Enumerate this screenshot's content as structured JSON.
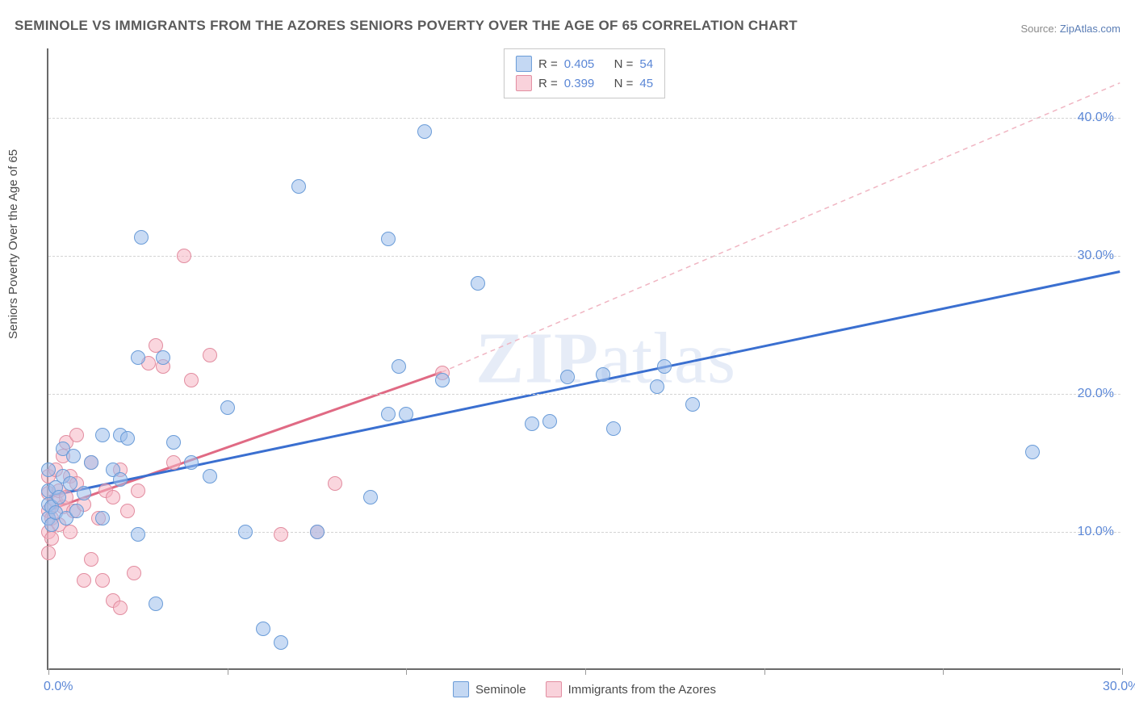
{
  "title": "SEMINOLE VS IMMIGRANTS FROM THE AZORES SENIORS POVERTY OVER THE AGE OF 65 CORRELATION CHART",
  "source_prefix": "Source: ",
  "source_name": "ZipAtlas.com",
  "y_axis_label": "Seniors Poverty Over the Age of 65",
  "watermark_zip": "ZIP",
  "watermark_atlas": "atlas",
  "chart": {
    "type": "scatter",
    "xlim": [
      0,
      30
    ],
    "ylim": [
      0,
      45
    ],
    "x_ticks": [
      0,
      5,
      10,
      15,
      20,
      25,
      30
    ],
    "x_tick_labels": {
      "0": "0.0%",
      "30": "30.0%"
    },
    "y_gridlines": [
      10,
      20,
      30,
      40
    ],
    "y_tick_labels": [
      "10.0%",
      "20.0%",
      "30.0%",
      "40.0%"
    ],
    "background_color": "#ffffff",
    "grid_color": "#d4d4d4",
    "axis_color": "#6a6a6a",
    "tick_label_color": "#5b87d6",
    "title_color": "#5a5a5a",
    "title_fontsize": 17,
    "axis_label_fontsize": 15,
    "tick_label_fontsize": 16
  },
  "series": {
    "seminole": {
      "label": "Seminole",
      "color_fill": "rgba(156,190,235,0.55)",
      "color_stroke": "#6a9cd8",
      "marker_radius": 9,
      "R": "0.405",
      "N": "54",
      "trend": {
        "x1": 0,
        "y1": 12.5,
        "x2": 30,
        "y2": 28.8,
        "color": "#3a6fd0",
        "width": 3,
        "dash": "none"
      },
      "points": [
        [
          0.0,
          11.0
        ],
        [
          0.0,
          12.0
        ],
        [
          0.0,
          13.0
        ],
        [
          0.0,
          14.5
        ],
        [
          0.1,
          10.5
        ],
        [
          0.1,
          11.8
        ],
        [
          0.2,
          13.2
        ],
        [
          0.2,
          11.4
        ],
        [
          0.3,
          12.5
        ],
        [
          0.4,
          14.0
        ],
        [
          0.4,
          16.0
        ],
        [
          0.5,
          11.0
        ],
        [
          0.6,
          13.5
        ],
        [
          0.7,
          15.5
        ],
        [
          0.8,
          11.5
        ],
        [
          1.0,
          12.8
        ],
        [
          1.2,
          15.0
        ],
        [
          1.5,
          11.0
        ],
        [
          1.5,
          17.0
        ],
        [
          1.8,
          14.5
        ],
        [
          2.0,
          13.8
        ],
        [
          2.0,
          17.0
        ],
        [
          2.2,
          16.8
        ],
        [
          2.5,
          9.8
        ],
        [
          2.5,
          22.6
        ],
        [
          2.6,
          31.3
        ],
        [
          3.0,
          4.8
        ],
        [
          3.2,
          22.6
        ],
        [
          3.5,
          16.5
        ],
        [
          4.0,
          15.0
        ],
        [
          4.5,
          14.0
        ],
        [
          5.0,
          19.0
        ],
        [
          5.5,
          10.0
        ],
        [
          6.0,
          3.0
        ],
        [
          6.5,
          2.0
        ],
        [
          7.0,
          35.0
        ],
        [
          7.5,
          10.0
        ],
        [
          9.0,
          12.5
        ],
        [
          9.5,
          18.5
        ],
        [
          9.5,
          31.2
        ],
        [
          9.8,
          22.0
        ],
        [
          10.0,
          18.5
        ],
        [
          10.5,
          39.0
        ],
        [
          11.0,
          21.0
        ],
        [
          12.0,
          28.0
        ],
        [
          13.5,
          17.8
        ],
        [
          14.0,
          18.0
        ],
        [
          14.5,
          21.2
        ],
        [
          15.5,
          21.4
        ],
        [
          15.8,
          17.5
        ],
        [
          17.0,
          20.5
        ],
        [
          17.2,
          22.0
        ],
        [
          18.0,
          19.2
        ],
        [
          27.5,
          15.8
        ]
      ]
    },
    "azores": {
      "label": "Immigrants from the Azores",
      "color_fill": "rgba(245,180,195,0.55)",
      "color_stroke": "#e28da0",
      "marker_radius": 9,
      "R": "0.399",
      "N": "45",
      "trend_solid": {
        "x1": 0,
        "y1": 11.5,
        "x2": 11.0,
        "y2": 21.5,
        "color": "#e06a84",
        "width": 3
      },
      "trend_dashed": {
        "x1": 11.0,
        "y1": 21.5,
        "x2": 30,
        "y2": 42.5,
        "color": "#f0b5c2",
        "width": 1.5,
        "dash": "6,5"
      },
      "points": [
        [
          0.0,
          10.0
        ],
        [
          0.0,
          11.5
        ],
        [
          0.0,
          12.8
        ],
        [
          0.0,
          14.0
        ],
        [
          0.0,
          8.5
        ],
        [
          0.1,
          9.5
        ],
        [
          0.1,
          11.0
        ],
        [
          0.2,
          12.2
        ],
        [
          0.2,
          14.5
        ],
        [
          0.3,
          10.5
        ],
        [
          0.3,
          13.0
        ],
        [
          0.4,
          11.8
        ],
        [
          0.4,
          15.5
        ],
        [
          0.5,
          12.5
        ],
        [
          0.5,
          16.5
        ],
        [
          0.6,
          10.0
        ],
        [
          0.6,
          14.0
        ],
        [
          0.7,
          11.5
        ],
        [
          0.8,
          13.5
        ],
        [
          0.8,
          17.0
        ],
        [
          1.0,
          6.5
        ],
        [
          1.0,
          12.0
        ],
        [
          1.2,
          8.0
        ],
        [
          1.2,
          15.0
        ],
        [
          1.4,
          11.0
        ],
        [
          1.5,
          6.5
        ],
        [
          1.6,
          13.0
        ],
        [
          1.8,
          5.0
        ],
        [
          1.8,
          12.5
        ],
        [
          2.0,
          4.5
        ],
        [
          2.0,
          14.5
        ],
        [
          2.2,
          11.5
        ],
        [
          2.4,
          7.0
        ],
        [
          2.5,
          13.0
        ],
        [
          2.8,
          22.2
        ],
        [
          3.0,
          23.5
        ],
        [
          3.2,
          22.0
        ],
        [
          3.5,
          15.0
        ],
        [
          3.8,
          30.0
        ],
        [
          4.0,
          21.0
        ],
        [
          4.5,
          22.8
        ],
        [
          6.5,
          9.8
        ],
        [
          7.5,
          10.0
        ],
        [
          8.0,
          13.5
        ],
        [
          11.0,
          21.5
        ]
      ]
    }
  },
  "legend": {
    "R_label": "R =",
    "N_label": "N ="
  }
}
